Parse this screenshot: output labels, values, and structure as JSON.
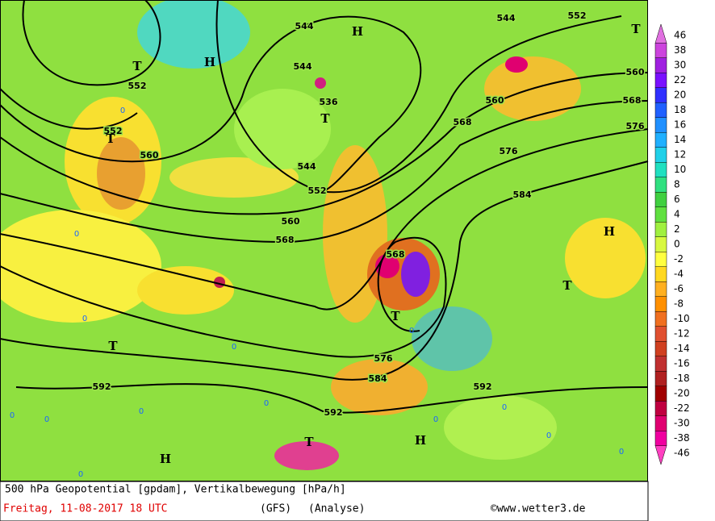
{
  "map": {
    "contour_labels": [
      "552",
      "552",
      "544",
      "544",
      "536",
      "544",
      "552",
      "560",
      "568",
      "560",
      "568",
      "576",
      "584",
      "592",
      "592",
      "592",
      "584",
      "576",
      "576",
      "568",
      "560",
      "560",
      "552",
      "544",
      "568"
    ],
    "pressure_centers": [
      "T",
      "H",
      "T",
      "H",
      "T",
      "T",
      "H",
      "T",
      "T",
      "T",
      "T",
      "H",
      "H"
    ],
    "zero_labels": [
      "0",
      "0",
      "0",
      "0",
      "0",
      "0",
      "0",
      "0",
      "0",
      "0",
      "0",
      "0",
      "0",
      "0"
    ]
  },
  "legend": {
    "labels": [
      "46",
      "38",
      "30",
      "22",
      "20",
      "18",
      "16",
      "14",
      "12",
      "10",
      "8",
      "6",
      "4",
      "2",
      "0",
      "-2",
      "-4",
      "-6",
      "-8",
      "-10",
      "-12",
      "-14",
      "-16",
      "-18",
      "-20",
      "-22",
      "-30",
      "-38",
      "-46"
    ],
    "colors": [
      "#e070e0",
      "#cc44dd",
      "#a020e0",
      "#7a10ff",
      "#3030ff",
      "#2060ff",
      "#2090ff",
      "#20b0ff",
      "#20d0e8",
      "#20e0c0",
      "#30e080",
      "#40d040",
      "#60e040",
      "#a0f040",
      "#d8f840",
      "#ffff40",
      "#ffd820",
      "#ffb020",
      "#ff9000",
      "#f07020",
      "#e05030",
      "#d04020",
      "#c03030",
      "#b02020",
      "#a00000",
      "#c00040",
      "#e00070",
      "#f000a0",
      "#ff40c0"
    ]
  },
  "footer": {
    "title": "500 hPa Geopotential [gpdam], Vertikalbewegung [hPa/h]",
    "date": "Freitag, 11-08-2017  18 UTC",
    "model": "(GFS)",
    "run": "(Analyse)",
    "credit": "©www.wetter3.de"
  }
}
